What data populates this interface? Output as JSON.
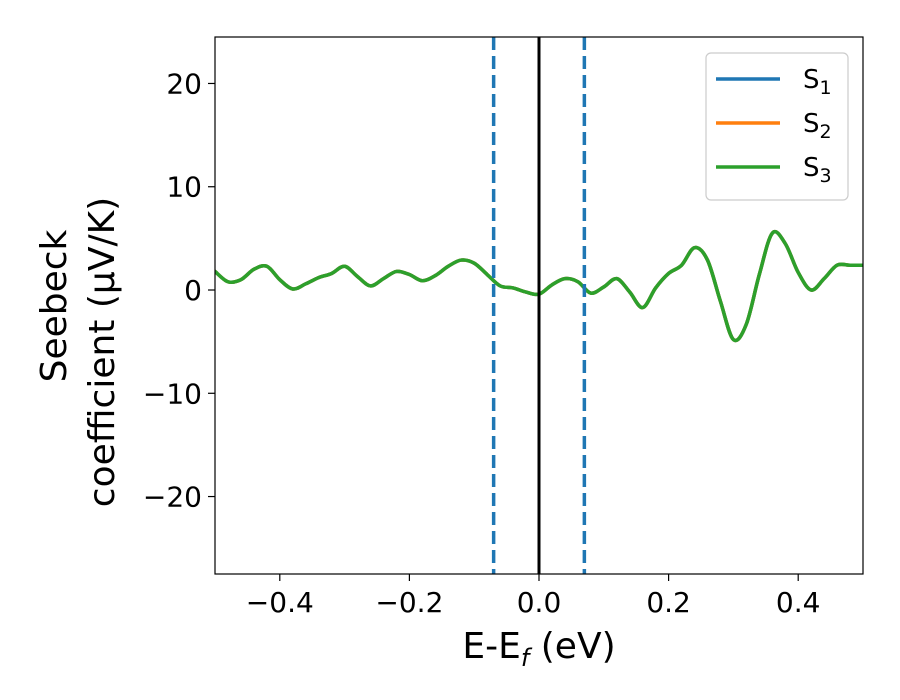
{
  "chart_data": {
    "type": "line",
    "xlabel": {
      "main": "E-E",
      "sub": "f",
      "suffix": " (eV)"
    },
    "ylabel": {
      "line1": "Seebeck",
      "line2": "coefficient  (μV/K)"
    },
    "xlim": [
      -0.5,
      0.5
    ],
    "ylim": [
      -27.5,
      24.5
    ],
    "xticks": [
      -0.4,
      -0.2,
      0.0,
      0.2,
      0.4
    ],
    "xtick_labels": [
      "−0.4",
      "−0.2",
      "0.0",
      "0.2",
      "0.4"
    ],
    "yticks": [
      -20,
      -10,
      0,
      10,
      20
    ],
    "ytick_labels": [
      "−20",
      "−10",
      "0",
      "10",
      "20"
    ],
    "grid": false,
    "legend_position": "top-right",
    "vlines": [
      {
        "x": -0.07,
        "style": "dashed",
        "color": "#1f77b4"
      },
      {
        "x": 0.0,
        "style": "solid",
        "color": "#000000"
      },
      {
        "x": 0.07,
        "style": "dashed",
        "color": "#1f77b4"
      }
    ],
    "x": [
      -0.5,
      -0.48,
      -0.46,
      -0.44,
      -0.42,
      -0.4,
      -0.38,
      -0.36,
      -0.34,
      -0.32,
      -0.3,
      -0.28,
      -0.26,
      -0.24,
      -0.22,
      -0.2,
      -0.18,
      -0.16,
      -0.14,
      -0.12,
      -0.1,
      -0.08,
      -0.06,
      -0.04,
      -0.02,
      0.0,
      0.02,
      0.04,
      0.06,
      0.08,
      0.1,
      0.12,
      0.14,
      0.16,
      0.18,
      0.2,
      0.22,
      0.24,
      0.26,
      0.28,
      0.3,
      0.32,
      0.34,
      0.36,
      0.38,
      0.4,
      0.42,
      0.44,
      0.46,
      0.48,
      0.5
    ],
    "series": [
      {
        "name": "S",
        "sub": "1",
        "color": "#1f77b4",
        "values": [
          1.8,
          0.8,
          1.0,
          2.0,
          2.3,
          1.0,
          0.1,
          0.6,
          1.2,
          1.6,
          2.3,
          1.3,
          0.4,
          1.1,
          1.8,
          1.5,
          0.9,
          1.4,
          2.3,
          2.9,
          2.6,
          1.5,
          0.4,
          0.2,
          -0.2,
          -0.4,
          0.5,
          1.1,
          0.8,
          -0.3,
          0.3,
          1.1,
          -0.2,
          -1.7,
          0.2,
          1.6,
          2.4,
          4.1,
          2.9,
          -1.1,
          -4.8,
          -3.3,
          1.5,
          5.5,
          4.5,
          1.7,
          0.0,
          1.1,
          2.4,
          2.4,
          2.4
        ]
      },
      {
        "name": "S",
        "sub": "2",
        "color": "#ff7f0e",
        "values": [
          1.8,
          0.8,
          1.0,
          2.0,
          2.3,
          1.0,
          0.1,
          0.6,
          1.2,
          1.6,
          2.3,
          1.3,
          0.4,
          1.1,
          1.8,
          1.5,
          0.9,
          1.4,
          2.3,
          2.9,
          2.6,
          1.5,
          0.4,
          0.2,
          -0.2,
          -0.4,
          0.5,
          1.1,
          0.8,
          -0.3,
          0.3,
          1.1,
          -0.2,
          -1.7,
          0.2,
          1.6,
          2.4,
          4.1,
          2.9,
          -1.1,
          -4.8,
          -3.3,
          1.5,
          5.5,
          4.5,
          1.7,
          0.0,
          1.1,
          2.4,
          2.4,
          2.4
        ]
      },
      {
        "name": "S",
        "sub": "3",
        "color": "#2ca02c",
        "values": [
          1.8,
          0.8,
          1.0,
          2.0,
          2.3,
          1.0,
          0.1,
          0.6,
          1.2,
          1.6,
          2.3,
          1.3,
          0.4,
          1.1,
          1.8,
          1.5,
          0.9,
          1.4,
          2.3,
          2.9,
          2.6,
          1.5,
          0.4,
          0.2,
          -0.2,
          -0.4,
          0.5,
          1.1,
          0.8,
          -0.3,
          0.3,
          1.1,
          -0.2,
          -1.7,
          0.2,
          1.6,
          2.4,
          4.1,
          2.9,
          -1.1,
          -4.8,
          -3.3,
          1.5,
          5.5,
          4.5,
          1.7,
          0.0,
          1.1,
          2.4,
          2.4,
          2.4
        ]
      }
    ]
  }
}
